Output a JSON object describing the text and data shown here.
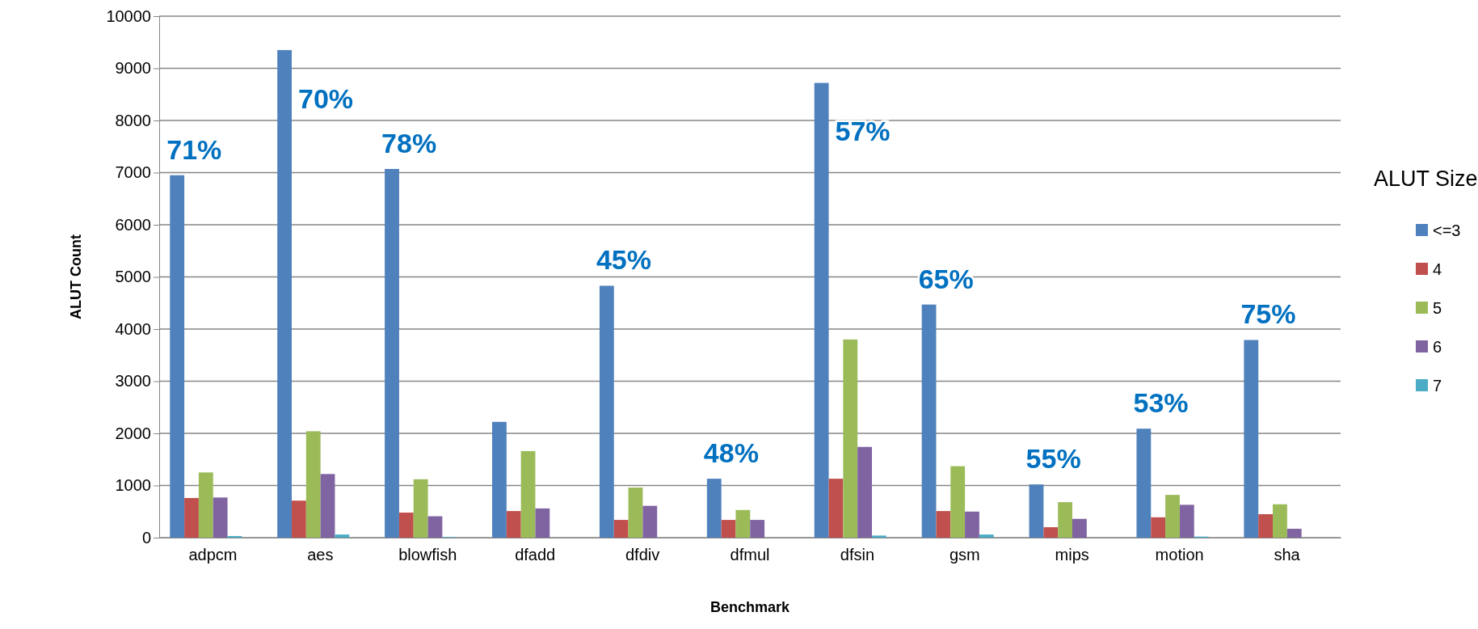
{
  "chart_data": {
    "type": "bar",
    "xlabel": "Benchmark",
    "ylabel": "ALUT Count",
    "legend_title": "ALUT Size",
    "categories": [
      "adpcm",
      "aes",
      "blowfish",
      "dfadd",
      "dfdiv",
      "dfmul",
      "dfsin",
      "gsm",
      "mips",
      "motion",
      "sha"
    ],
    "series": [
      {
        "name": "<=3",
        "color": "#4f81bd",
        "values": [
          6950,
          9350,
          7070,
          2220,
          4830,
          1130,
          8720,
          4470,
          1020,
          2090,
          3790
        ]
      },
      {
        "name": "4",
        "color": "#c0504d",
        "values": [
          760,
          710,
          480,
          510,
          340,
          340,
          1130,
          510,
          200,
          390,
          450
        ]
      },
      {
        "name": "5",
        "color": "#9bbb59",
        "values": [
          1250,
          2040,
          1120,
          1660,
          960,
          530,
          3800,
          1370,
          680,
          820,
          640
        ]
      },
      {
        "name": "6",
        "color": "#8064a2",
        "values": [
          770,
          1220,
          410,
          560,
          610,
          340,
          1740,
          500,
          360,
          630,
          170
        ]
      },
      {
        "name": "7",
        "color": "#4bacc6",
        "values": [
          30,
          60,
          10,
          0,
          0,
          0,
          40,
          60,
          0,
          20,
          0
        ]
      }
    ],
    "ylim": [
      0,
      10000
    ],
    "yticks": [
      0,
      1000,
      2000,
      3000,
      4000,
      5000,
      6000,
      7000,
      8000,
      9000,
      10000
    ],
    "grid": "y",
    "legend": "right",
    "annotations": [
      "71%",
      "70%",
      "78%",
      "45%",
      "48%",
      "57%",
      "65%",
      "55%",
      "53%",
      "75%"
    ]
  }
}
